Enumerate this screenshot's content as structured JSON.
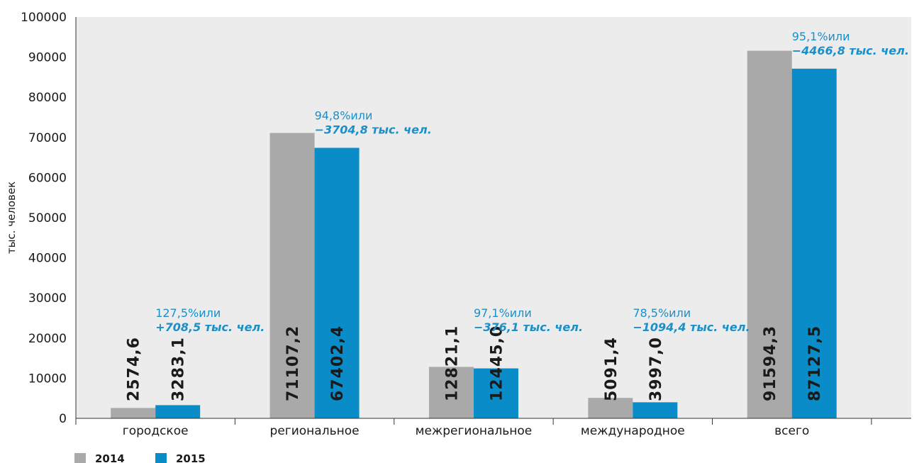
{
  "chart_data": {
    "type": "bar",
    "ylabel": "тыс. человек",
    "ylim": [
      0,
      100000
    ],
    "yticks": [
      "0",
      "10000",
      "20000",
      "30000",
      "40000",
      "50000",
      "60000",
      "70000",
      "80000",
      "90000",
      "100000"
    ],
    "grid": false,
    "legend_position": "bottom-left",
    "categories": [
      "городское",
      "региональное",
      "межрегиональное",
      "международное",
      "всего"
    ],
    "series": [
      {
        "name": "2014",
        "color": "#a9a9a9",
        "values": [
          2574.6,
          71107.2,
          12821.1,
          5091.4,
          91594.3
        ],
        "labels": [
          "2574,6",
          "71107,2",
          "12821,1",
          "5091,4",
          "91594,3"
        ]
      },
      {
        "name": "2015",
        "color": "#0a8cc9",
        "values": [
          3283.1,
          67402.4,
          12445.0,
          3997.0,
          87127.5
        ],
        "labels": [
          "3283,1",
          "67402,4",
          "12445,0",
          "3997,0",
          "87127,5"
        ]
      }
    ],
    "annotations": [
      {
        "line1": "127,5%или",
        "line2": "+708,5 тыс. чел."
      },
      {
        "line1": "94,8%или",
        "line2": "−3704,8 тыс. чел."
      },
      {
        "line1": "97,1%или",
        "line2": "−376,1 тыс. чел."
      },
      {
        "line1": "78,5%или",
        "line2": "−1094,4 тыс. чел."
      },
      {
        "line1": "95,1%или",
        "line2": "−4466,8 тыс. чел."
      }
    ]
  }
}
